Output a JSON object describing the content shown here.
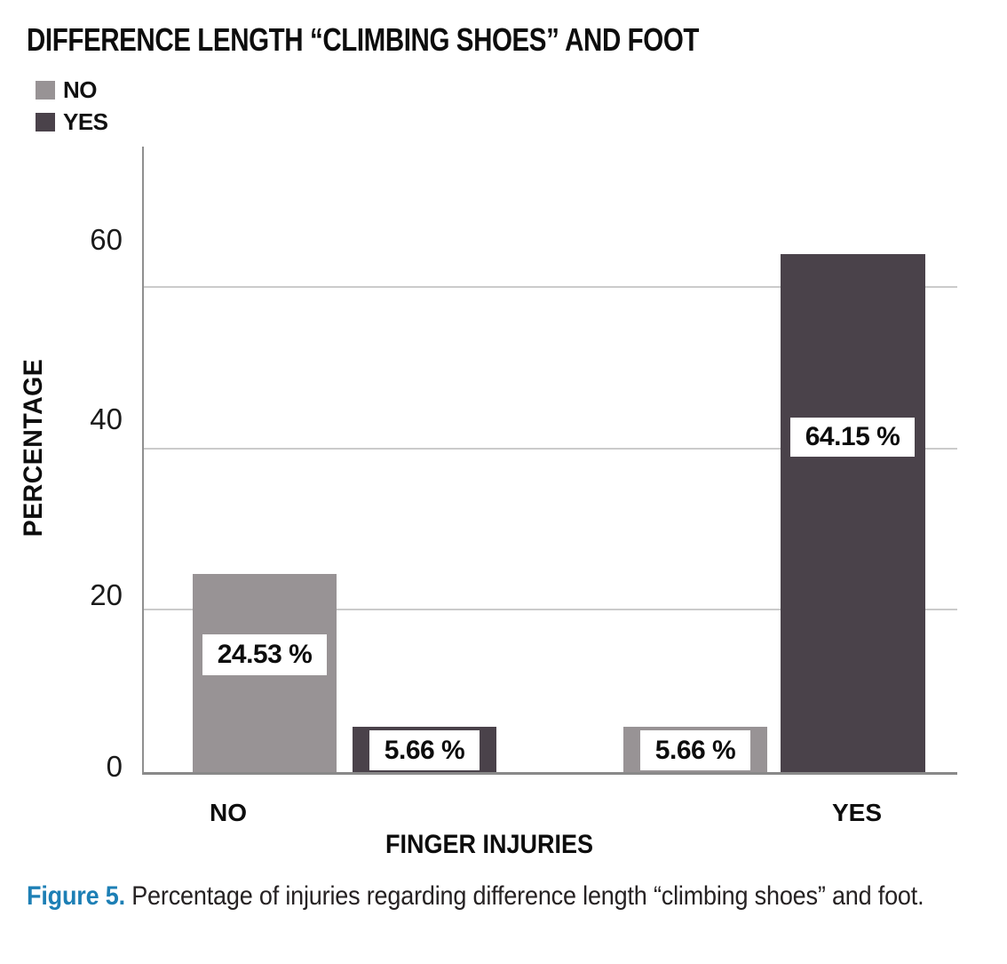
{
  "chart_data": {
    "type": "bar",
    "title": "DIFFERENCE LENGTH “CLIMBING SHOES” AND FOOT",
    "categories": [
      "NO",
      "YES"
    ],
    "series": [
      {
        "name": "NO",
        "color": "#989395",
        "values": [
          24.53,
          5.66
        ]
      },
      {
        "name": "YES",
        "color": "#4a424a",
        "values": [
          5.66,
          64.15
        ]
      }
    ],
    "bar_labels": [
      "24.53 %",
      "5.66 %",
      "5.66 %",
      "64.15 %"
    ],
    "xlabel": "FINGER INJURIES",
    "ylabel": "PERCENTAGE",
    "yticks": [
      0,
      20,
      40,
      60
    ],
    "ytick_labels": [
      "0",
      "20",
      "40",
      "60"
    ],
    "gridlines": [
      20,
      40,
      60
    ],
    "ylim": [
      0,
      77.8
    ],
    "grid": "horizontal",
    "legend_position": "top-left",
    "value_label_background": "#ffffff"
  },
  "caption": {
    "prefix": "Figure 5.",
    "text": " Percentage of injuries regarding difference length “climbing shoes” and foot."
  },
  "colors": {
    "caption_accent": "#1d7fb5",
    "axis_line": "#8f8f8f",
    "baseline": "#898989",
    "gridline": "#cbcbcb",
    "text": "#0d0d0d"
  }
}
